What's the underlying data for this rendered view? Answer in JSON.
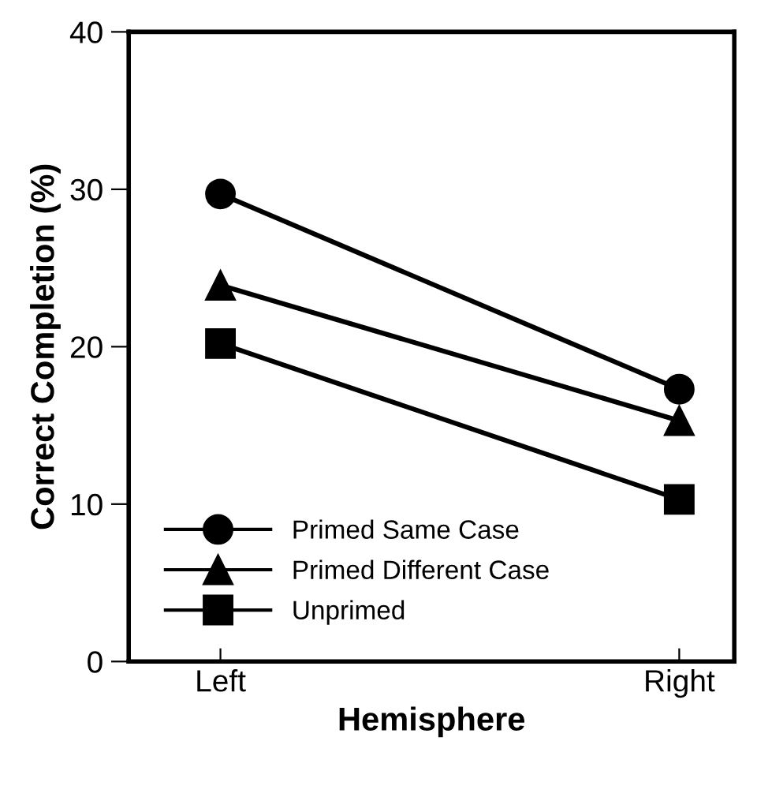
{
  "chart_data": {
    "type": "line",
    "xlabel": "Hemisphere",
    "ylabel": "Correct Completion (%)",
    "categories": [
      "Left",
      "Right"
    ],
    "series": [
      {
        "name": "Primed Same Case",
        "color": "#000000",
        "marker": "circle",
        "values": [
          29.7,
          17.3
        ]
      },
      {
        "name": "Primed Different Case",
        "color": "#000000",
        "marker": "triangle",
        "values": [
          23.9,
          15.3
        ]
      },
      {
        "name": "Unprimed",
        "color": "#000000",
        "marker": "square",
        "values": [
          20.2,
          10.3
        ]
      }
    ],
    "ylim": [
      0,
      40
    ],
    "yticks": [
      0,
      10,
      20,
      30,
      40
    ],
    "grid": false,
    "legend": "bottom left",
    "line_style": "solid"
  }
}
